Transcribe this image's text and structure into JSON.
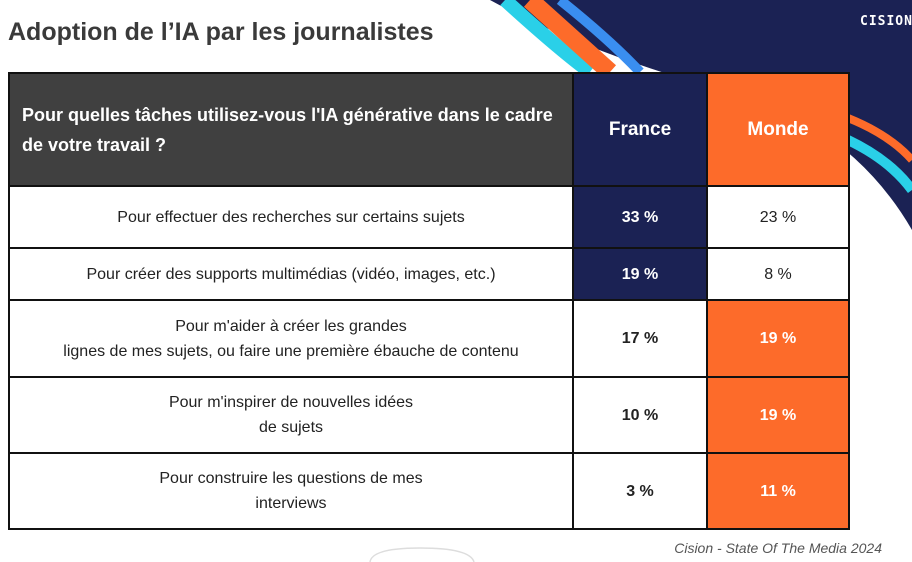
{
  "title": "Adoption de l’IA par les journalistes",
  "logo": "CISION",
  "table": {
    "header": [
      "Pour quelles tâches utilisez-vous l'IA générative dans le cadre de votre travail ?",
      "France",
      "Monde"
    ],
    "rows": [
      [
        "Pour effectuer des recherches sur certains sujets",
        "33 %",
        "23 %"
      ],
      [
        "Pour créer des supports multimédias (vidéo, images, etc.)",
        "19 %",
        "8 %"
      ],
      [
        "Pour m'aider à créer les grandes\nlignes de mes sujets, ou faire une première ébauche de contenu",
        "17 %",
        "19 %"
      ],
      [
        "Pour m'inspirer de nouvelles idées\nde sujets",
        "10 %",
        "19 %"
      ],
      [
        "Pour construire les questions de mes\ninterviews",
        "3 %",
        "11 %"
      ]
    ]
  },
  "source": "Cision - State Of The Media 2024"
}
